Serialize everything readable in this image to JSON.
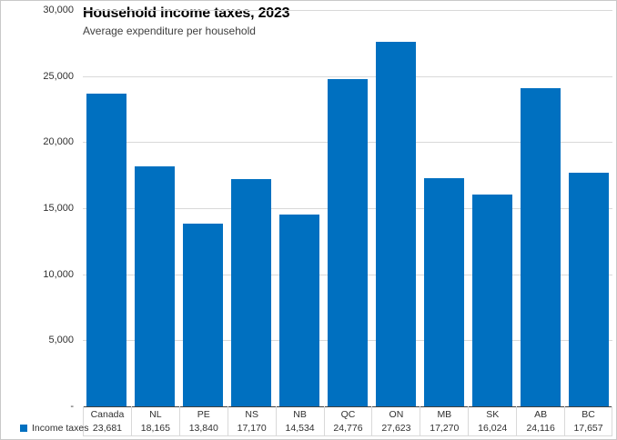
{
  "chart": {
    "title": "Household income taxes, 2023",
    "subtitle": "Average expenditure per household",
    "legend_label": "Income taxes",
    "colors": {
      "bar": "#0070C0",
      "gridline": "#D9D9D9",
      "axis_line": "#404040",
      "table_line": "#D9D9D9",
      "text": "#303030"
    },
    "y_axis": {
      "max": 30000,
      "ticks": [
        {
          "value": 30000,
          "label": "30,000"
        },
        {
          "value": 25000,
          "label": "25,000"
        },
        {
          "value": 20000,
          "label": "20,000"
        },
        {
          "value": 15000,
          "label": "15,000"
        },
        {
          "value": 10000,
          "label": "10,000"
        },
        {
          "value": 5000,
          "label": "5,000"
        },
        {
          "value": 0,
          "label": "-"
        }
      ]
    }
  },
  "chart_data": {
    "type": "bar",
    "title": "Household income taxes, 2023",
    "subtitle": "Average expenditure per household",
    "categories": [
      "Canada",
      "NL",
      "PE",
      "NS",
      "NB",
      "QC",
      "ON",
      "MB",
      "SK",
      "AB",
      "BC"
    ],
    "series": [
      {
        "name": "Income taxes",
        "values": [
          23681,
          18165,
          13840,
          17170,
          14534,
          24776,
          27623,
          17270,
          16024,
          24116,
          17657
        ]
      }
    ],
    "value_labels": [
      "23,681",
      "18,165",
      "13,840",
      "17,170",
      "14,534",
      "24,776",
      "27,623",
      "17,270",
      "16,024",
      "24,116",
      "17,657"
    ],
    "xlabel": "",
    "ylabel": "",
    "ylim": [
      0,
      30000
    ],
    "grid": true,
    "gridline_interval": 5000,
    "legend_position": "bottom-left",
    "bar_color": "#0070C0",
    "data_table_shown": true
  }
}
